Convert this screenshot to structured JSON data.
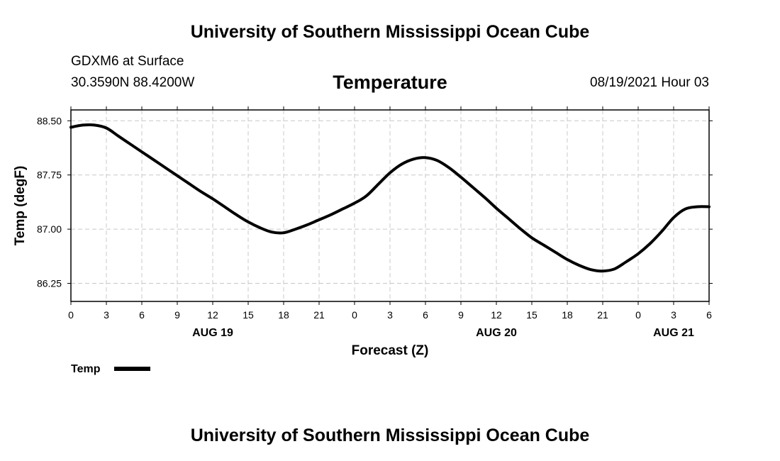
{
  "header": {
    "top_title": "University of Southern Mississippi Ocean Cube",
    "station": "GDXM6 at Surface",
    "coords": "30.3590N  88.4200W",
    "datetime": "08/19/2021 Hour 03",
    "bottom_title": "University of Southern Mississippi Ocean Cube"
  },
  "chart_data": {
    "type": "line",
    "title": "Temperature",
    "xlabel": "Forecast (Z)",
    "ylabel": "Temp (degF)",
    "xlim": [
      0,
      54
    ],
    "ylim": [
      86.0,
      88.65
    ],
    "x_ticks": [
      0,
      3,
      6,
      9,
      12,
      15,
      18,
      21,
      24,
      27,
      30,
      33,
      36,
      39,
      42,
      45,
      48,
      51,
      54
    ],
    "x_tick_labels": [
      "0",
      "3",
      "6",
      "9",
      "12",
      "15",
      "18",
      "21",
      "0",
      "3",
      "6",
      "9",
      "12",
      "15",
      "18",
      "21",
      "0",
      "3",
      "6"
    ],
    "y_ticks": [
      86.25,
      87.0,
      87.75,
      88.5
    ],
    "y_tick_labels": [
      "86.25",
      "87.00",
      "87.75",
      "88.50"
    ],
    "date_labels": [
      {
        "x": 12,
        "label": "AUG 19"
      },
      {
        "x": 36,
        "label": "AUG 20"
      },
      {
        "x": 51,
        "label": "AUG 21"
      }
    ],
    "grid": true,
    "legend": "bottom-left",
    "series": [
      {
        "name": "Temp",
        "color": "#000000",
        "x": [
          0,
          1,
          2,
          3,
          4,
          5,
          6,
          7,
          8,
          9,
          10,
          11,
          12,
          13,
          14,
          15,
          16,
          17,
          18,
          19,
          20,
          21,
          22,
          23,
          24,
          25,
          26,
          27,
          28,
          29,
          30,
          31,
          32,
          33,
          34,
          35,
          36,
          37,
          38,
          39,
          40,
          41,
          42,
          43,
          44,
          45,
          46,
          47,
          48,
          49,
          50,
          51,
          52,
          53,
          54
        ],
        "y": [
          88.41,
          88.44,
          88.44,
          88.4,
          88.29,
          88.18,
          88.07,
          87.96,
          87.85,
          87.74,
          87.63,
          87.52,
          87.42,
          87.31,
          87.2,
          87.1,
          87.02,
          86.96,
          86.95,
          87.0,
          87.06,
          87.13,
          87.2,
          87.28,
          87.36,
          87.46,
          87.62,
          87.78,
          87.9,
          87.97,
          87.99,
          87.95,
          87.85,
          87.72,
          87.58,
          87.44,
          87.29,
          87.15,
          87.01,
          86.88,
          86.78,
          86.68,
          86.58,
          86.5,
          86.44,
          86.42,
          86.45,
          86.55,
          86.66,
          86.8,
          86.97,
          87.16,
          87.28,
          87.31,
          87.31
        ]
      }
    ]
  }
}
